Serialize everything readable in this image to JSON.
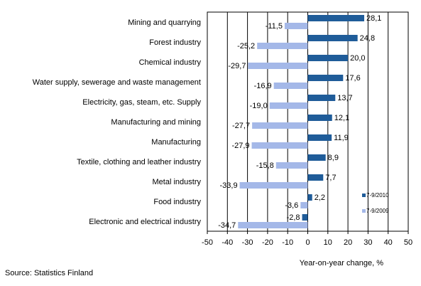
{
  "chart_data": {
    "type": "bar",
    "orientation": "horizontal",
    "categories": [
      "Mining and quarrying",
      "Forest industry",
      "Chemical industry",
      "Water supply, sewerage and waste management",
      "Electricity, gas, steam, etc. Supply",
      "Manufacturing and mining",
      "Manufacturing",
      "Textile, clothing and leather industry",
      "Metal industry",
      "Food industry",
      "Electronic and electrical industry"
    ],
    "series": [
      {
        "name": "7-9/2010",
        "color": "#1f5c99",
        "values": [
          28.1,
          24.8,
          20.0,
          17.6,
          13.7,
          12.1,
          11.9,
          8.9,
          7.7,
          2.2,
          -2.8
        ],
        "labels": [
          "28,1",
          "24,8",
          "20,0",
          "17,6",
          "13,7",
          "12,1",
          "11,9",
          "8,9",
          "7,7",
          "2,2",
          "-2,8"
        ]
      },
      {
        "name": "7-9/2009",
        "color": "#a4b8e8",
        "values": [
          -11.5,
          -25.2,
          -29.7,
          -16.9,
          -19.0,
          -27.7,
          -27.9,
          -15.8,
          -33.9,
          -3.6,
          -34.7
        ],
        "labels": [
          "-11,5",
          "-25,2",
          "-29,7",
          "-16,9",
          "-19,0",
          "-27,7",
          "-27,9",
          "-15,8",
          "-33,9",
          "-3,6",
          "-34,7"
        ]
      }
    ],
    "xlim": [
      -50,
      50
    ],
    "xticks": [
      -50,
      -40,
      -30,
      -20,
      -10,
      0,
      10,
      20,
      30,
      40,
      50
    ],
    "xlabel": "Year-on-year change, %",
    "grid": true,
    "legend_position": "right"
  },
  "source": "Source: Statistics Finland"
}
